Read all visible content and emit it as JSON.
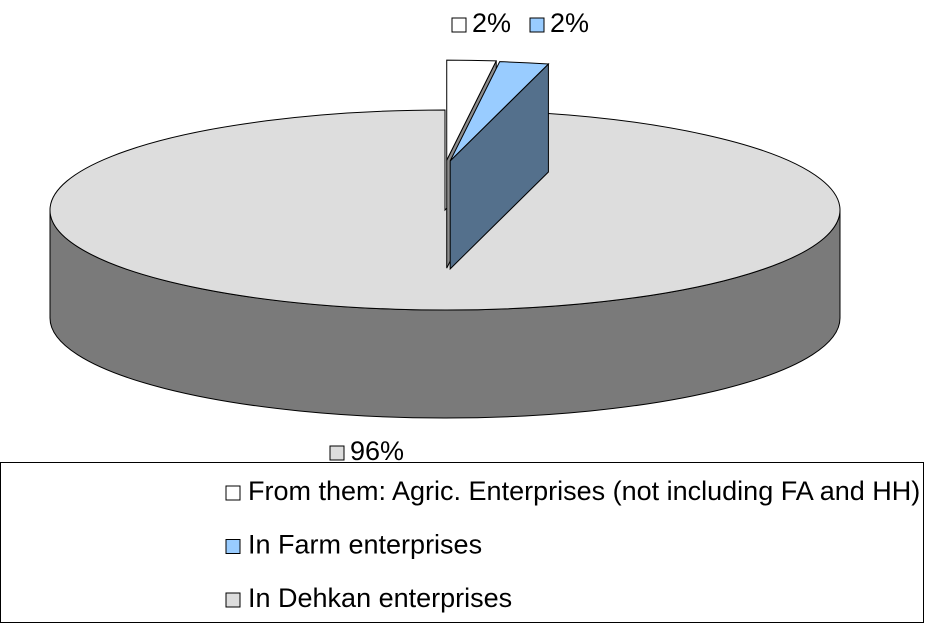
{
  "chart_data": {
    "type": "pie",
    "categories": [
      "From them: Agric. Enterprises (not including FA and HH)",
      "In Farm enterprises",
      "In Dehkan enterprises"
    ],
    "values": [
      2,
      2,
      96
    ],
    "value_labels": [
      "2%",
      "2%",
      "96%"
    ],
    "colors": [
      "#ffffff",
      "#99ccff",
      "#dddddd"
    ],
    "exploded": [
      true,
      true,
      false
    ],
    "legend": "bottom"
  }
}
